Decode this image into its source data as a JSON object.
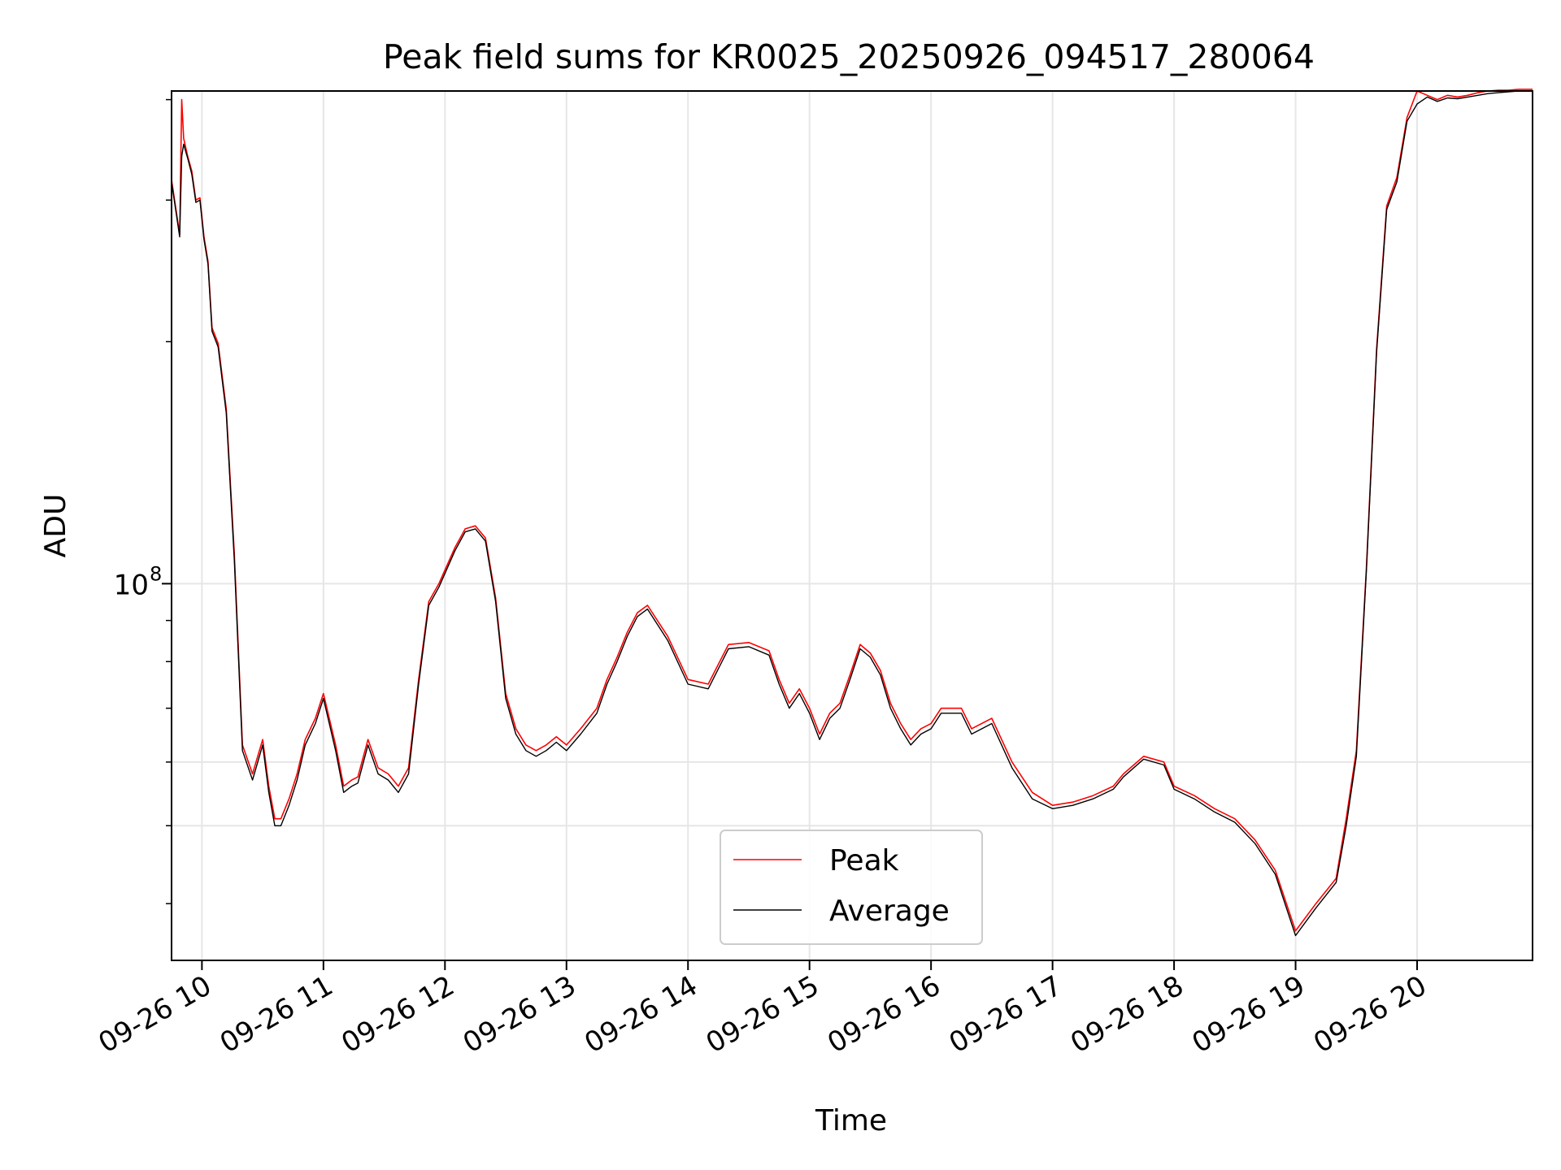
{
  "chart_data": {
    "type": "line",
    "title": "Peak field sums for KR0025_20250926_094517_280064",
    "xlabel": "Time",
    "ylabel": "ADU",
    "yscale": "log",
    "xlim": [
      "2025-09-26 09:45",
      "2025-09-26 20:57"
    ],
    "ylim": [
      34000000,
      410000000
    ],
    "x_tick_labels": [
      "09-26 10",
      "09-26 11",
      "09-26 12",
      "09-26 13",
      "09-26 14",
      "09-26 15",
      "09-26 16",
      "09-26 17",
      "09-26 18",
      "09-26 19",
      "09-26 20"
    ],
    "x_ticks": [
      "2025-09-26 10:00",
      "2025-09-26 11:00",
      "2025-09-26 12:00",
      "2025-09-26 13:00",
      "2025-09-26 14:00",
      "2025-09-26 15:00",
      "2025-09-26 16:00",
      "2025-09-26 17:00",
      "2025-09-26 18:00",
      "2025-09-26 19:00",
      "2025-09-26 20:00"
    ],
    "y_major_ticks": [
      100000000
    ],
    "y_major_tick_labels": [
      "10",
      "8"
    ],
    "y_minor_ticks": [
      40000000,
      50000000,
      60000000,
      70000000,
      80000000,
      90000000,
      200000000,
      300000000,
      400000000
    ],
    "y_gridlines": [
      50000000,
      60000000,
      100000000
    ],
    "grid": true,
    "legend_position": "lower center",
    "x": [
      "09:45",
      "09:49",
      "09:50",
      "09:51",
      "09:53",
      "09:55",
      "09:57",
      "09:59",
      "10:01",
      "10:03",
      "10:05",
      "10:08",
      "10:12",
      "10:16",
      "10:20",
      "10:25",
      "10:30",
      "10:33",
      "10:36",
      "10:39",
      "10:43",
      "10:47",
      "10:51",
      "10:56",
      "11:00",
      "11:06",
      "11:10",
      "11:14",
      "11:17",
      "11:22",
      "11:27",
      "11:32",
      "11:37",
      "11:42",
      "11:47",
      "11:52",
      "11:57",
      "12:00",
      "12:05",
      "12:10",
      "12:15",
      "12:20",
      "12:25",
      "12:30",
      "12:35",
      "12:40",
      "12:45",
      "12:50",
      "12:55",
      "13:00",
      "13:07",
      "13:15",
      "13:20",
      "13:25",
      "13:30",
      "13:35",
      "13:40",
      "13:50",
      "14:00",
      "14:10",
      "14:20",
      "14:30",
      "14:40",
      "14:45",
      "14:50",
      "14:55",
      "15:00",
      "15:05",
      "15:10",
      "15:15",
      "15:20",
      "15:25",
      "15:30",
      "15:35",
      "15:40",
      "15:45",
      "15:50",
      "15:55",
      "16:00",
      "16:05",
      "16:15",
      "16:20",
      "16:30",
      "16:40",
      "16:50",
      "17:00",
      "17:10",
      "17:20",
      "17:30",
      "17:35",
      "17:45",
      "17:55",
      "18:00",
      "18:10",
      "18:20",
      "18:30",
      "18:40",
      "18:50",
      "19:00",
      "19:10",
      "19:20",
      "19:25",
      "19:30",
      "19:35",
      "19:40",
      "19:45",
      "19:50",
      "19:55",
      "20:00",
      "20:05",
      "20:10",
      "20:15",
      "20:20",
      "20:25",
      "20:30",
      "20:35",
      "20:40",
      "20:45",
      "20:50",
      "20:55",
      "20:57"
    ],
    "series": [
      {
        "name": "Peak",
        "color": "#ff0000",
        "values": [
          318000000,
          272000000,
          400000000,
          358000000,
          340000000,
          326000000,
          300000000,
          302000000,
          270000000,
          252000000,
          208000000,
          199000000,
          165000000,
          109000000,
          63000000,
          58000000,
          64000000,
          56000000,
          51000000,
          51000000,
          54000000,
          58000000,
          64000000,
          68000000,
          73000000,
          63000000,
          56000000,
          57000000,
          57500000,
          64000000,
          59000000,
          58000000,
          56000000,
          59000000,
          76000000,
          95000000,
          100000000,
          104000000,
          111000000,
          117000000,
          118000000,
          114000000,
          96000000,
          73000000,
          66000000,
          63000000,
          62000000,
          63000000,
          64500000,
          63000000,
          66000000,
          70000000,
          76000000,
          81000000,
          87000000,
          92000000,
          94000000,
          86000000,
          76000000,
          75000000,
          84000000,
          84500000,
          82500000,
          76000000,
          71000000,
          74000000,
          70000000,
          65000000,
          69000000,
          71000000,
          77000000,
          84000000,
          82000000,
          78000000,
          71000000,
          67000000,
          64000000,
          66000000,
          67000000,
          70000000,
          70000000,
          66000000,
          68000000,
          60000000,
          55000000,
          53000000,
          53500000,
          54500000,
          56000000,
          58000000,
          61000000,
          60000000,
          56000000,
          54500000,
          52500000,
          51000000,
          48000000,
          44000000,
          37000000,
          40000000,
          43000000,
          51000000,
          62000000,
          105000000,
          196000000,
          295000000,
          320000000,
          380000000,
          410000000,
          405000000,
          400000000,
          405000000,
          403000000,
          405000000,
          408000000,
          410000000,
          411000000,
          411000000,
          412000000,
          412000000,
          412000000
        ]
      },
      {
        "name": "Average",
        "color": "#000000",
        "values": [
          316000000,
          270000000,
          340000000,
          352000000,
          338000000,
          323000000,
          298000000,
          300000000,
          268000000,
          250000000,
          206000000,
          197000000,
          163000000,
          107000000,
          62000000,
          57000000,
          63000000,
          55000000,
          50000000,
          50000000,
          53000000,
          57000000,
          63000000,
          67000000,
          72000000,
          62000000,
          55000000,
          56000000,
          56500000,
          63000000,
          58000000,
          57000000,
          55000000,
          58000000,
          75000000,
          94000000,
          99000000,
          103000000,
          110000000,
          116000000,
          117000000,
          113000000,
          95000000,
          72000000,
          65000000,
          62000000,
          61000000,
          62000000,
          63500000,
          62000000,
          65000000,
          69000000,
          75000000,
          80000000,
          86000000,
          91000000,
          93000000,
          85000000,
          75000000,
          74000000,
          83000000,
          83500000,
          81500000,
          75000000,
          70000000,
          73000000,
          69000000,
          64000000,
          68000000,
          70000000,
          76000000,
          83000000,
          81000000,
          77000000,
          70000000,
          66000000,
          63000000,
          65000000,
          66000000,
          69000000,
          69000000,
          65000000,
          67000000,
          59000000,
          54000000,
          52500000,
          53000000,
          54000000,
          55500000,
          57500000,
          60500000,
          59500000,
          55500000,
          54000000,
          52000000,
          50500000,
          47500000,
          43500000,
          36500000,
          39500000,
          42500000,
          50000000,
          61000000,
          104000000,
          194000000,
          292000000,
          316000000,
          376000000,
          395000000,
          403000000,
          398000000,
          402000000,
          401000000,
          403000000,
          405000000,
          407000000,
          408000000,
          409000000,
          410000000,
          410000000,
          410000000
        ]
      }
    ]
  }
}
